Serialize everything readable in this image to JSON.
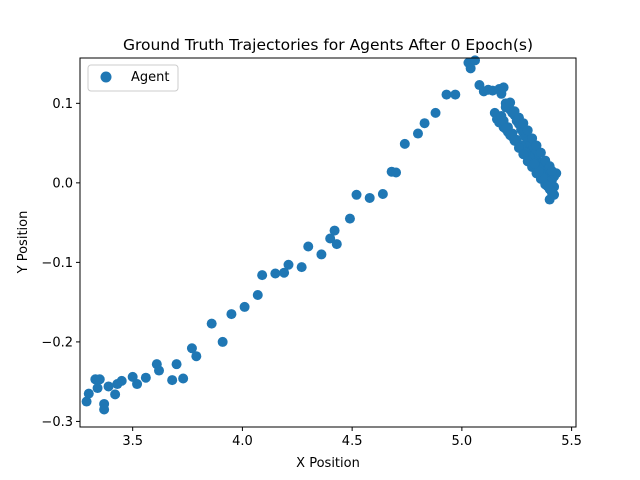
{
  "chart_data": {
    "type": "scatter",
    "title": "Ground Truth Trajectories for Agents After 0 Epoch(s)",
    "xlabel": "X Position",
    "ylabel": "Y Position",
    "xlim": [
      3.26,
      5.52
    ],
    "ylim": [
      -0.307,
      0.157
    ],
    "xticks": [
      3.5,
      4.0,
      4.5,
      5.0,
      5.5
    ],
    "xtick_labels": [
      "3.5",
      "4.0",
      "4.5",
      "5.0",
      "5.5"
    ],
    "yticks": [
      -0.3,
      -0.2,
      -0.1,
      0.0,
      0.1
    ],
    "ytick_labels": [
      "−0.3",
      "−0.2",
      "−0.1",
      "0.0",
      "0.1"
    ],
    "grid": false,
    "legend_position": "top-left",
    "series": [
      {
        "name": "Agent",
        "color": "#1f77b4",
        "x": [
          3.29,
          3.3,
          3.33,
          3.34,
          3.35,
          3.37,
          3.37,
          3.39,
          3.42,
          3.43,
          3.45,
          3.5,
          3.52,
          3.56,
          3.61,
          3.62,
          3.68,
          3.7,
          3.73,
          3.77,
          3.79,
          3.86,
          3.91,
          3.95,
          4.01,
          4.07,
          4.09,
          4.15,
          4.19,
          4.21,
          4.27,
          4.3,
          4.36,
          4.4,
          4.42,
          4.43,
          4.49,
          4.52,
          4.58,
          4.64,
          4.68,
          4.7,
          4.74,
          4.8,
          4.83,
          4.88,
          4.93,
          4.97,
          5.03,
          5.04,
          5.06,
          5.08,
          5.1,
          5.12,
          5.14,
          5.15,
          5.16,
          5.17,
          5.18,
          5.19,
          5.2,
          5.21,
          5.22,
          5.23,
          5.24,
          5.25,
          5.26,
          5.27,
          5.28,
          5.29,
          5.3,
          5.31,
          5.32,
          5.33,
          5.34,
          5.35,
          5.36,
          5.37,
          5.38,
          5.39,
          5.4,
          5.41,
          5.42,
          5.43,
          5.42,
          5.41,
          5.4,
          5.38,
          5.36,
          5.34,
          5.33,
          5.31,
          5.29,
          5.27,
          5.25,
          5.23,
          5.21,
          5.19,
          5.17,
          5.18,
          5.2,
          5.22,
          5.24,
          5.26,
          5.28,
          5.3,
          5.32,
          5.34,
          5.36,
          5.38,
          5.4,
          5.41,
          5.39,
          5.37,
          5.35,
          5.33,
          5.31,
          5.29,
          5.27,
          5.25,
          5.23,
          5.21,
          5.19,
          5.2,
          5.22,
          5.24,
          5.26,
          5.28,
          5.3,
          5.32,
          5.34,
          5.36,
          5.38,
          5.4,
          5.42,
          5.41,
          5.39,
          5.37,
          5.35,
          5.33
        ],
        "y": [
          -0.275,
          -0.265,
          -0.247,
          -0.258,
          -0.247,
          -0.278,
          -0.285,
          -0.256,
          -0.266,
          -0.253,
          -0.249,
          -0.244,
          -0.253,
          -0.245,
          -0.228,
          -0.236,
          -0.248,
          -0.228,
          -0.246,
          -0.208,
          -0.218,
          -0.177,
          -0.2,
          -0.165,
          -0.156,
          -0.141,
          -0.116,
          -0.114,
          -0.113,
          -0.103,
          -0.106,
          -0.08,
          -0.09,
          -0.07,
          -0.06,
          -0.077,
          -0.045,
          -0.015,
          -0.019,
          -0.014,
          0.014,
          0.013,
          0.049,
          0.062,
          0.075,
          0.088,
          0.111,
          0.111,
          0.151,
          0.144,
          0.154,
          0.123,
          0.115,
          0.117,
          0.116,
          0.088,
          0.08,
          0.118,
          0.112,
          0.12,
          0.1,
          0.095,
          0.092,
          0.088,
          0.085,
          0.078,
          0.074,
          0.067,
          0.063,
          0.058,
          0.052,
          0.047,
          0.041,
          0.036,
          0.03,
          0.025,
          0.02,
          0.014,
          0.009,
          0.004,
          -0.001,
          0.003,
          0.008,
          0.012,
          -0.005,
          -0.01,
          -0.021,
          0.006,
          0.012,
          0.019,
          0.026,
          0.033,
          0.039,
          0.046,
          0.052,
          0.058,
          0.064,
          0.07,
          0.076,
          0.084,
          0.095,
          0.101,
          0.09,
          0.082,
          0.075,
          0.066,
          0.056,
          0.047,
          0.038,
          0.028,
          0.021,
          0.015,
          0.002,
          0.008,
          0.018,
          0.024,
          0.032,
          0.038,
          0.047,
          0.054,
          0.062,
          0.07,
          0.078,
          0.068,
          0.06,
          0.053,
          0.044,
          0.036,
          0.027,
          0.02,
          0.012,
          0.005,
          -0.002,
          -0.008,
          -0.015,
          -0.012,
          -0.004,
          0.006,
          0.014,
          0.024
        ]
      }
    ]
  }
}
